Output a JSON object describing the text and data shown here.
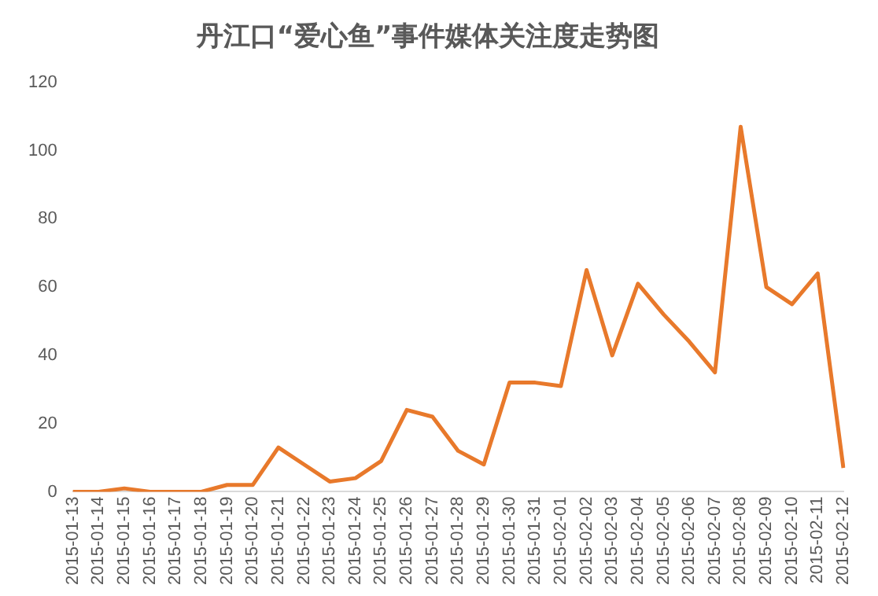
{
  "chart_data": {
    "type": "line",
    "title": "丹江口“爱心鱼”事件媒体关注度走势图",
    "categories": [
      "2015-01-13",
      "2015-01-14",
      "2015-01-15",
      "2015-01-16",
      "2015-01-17",
      "2015-01-18",
      "2015-01-19",
      "2015-01-20",
      "2015-01-21",
      "2015-01-22",
      "2015-01-23",
      "2015-01-24",
      "2015-01-25",
      "2015-01-26",
      "2015-01-27",
      "2015-01-28",
      "2015-01-29",
      "2015-01-30",
      "2015-01-31",
      "2015-02-01",
      "2015-02-02",
      "2015-02-03",
      "2015-02-04",
      "2015-02-05",
      "2015-02-06",
      "2015-02-07",
      "2015-02-08",
      "2015-02-09",
      "2015-02-10",
      "2015-02-11",
      "2015-02-12"
    ],
    "series": [
      {
        "color": "#e8792b",
        "values": [
          0,
          0,
          1,
          0,
          0,
          0,
          2,
          2,
          13,
          8,
          3,
          4,
          9,
          24,
          22,
          12,
          8,
          32,
          32,
          31,
          65,
          40,
          61,
          52,
          44,
          35,
          107,
          60,
          55,
          64,
          7
        ]
      }
    ],
    "ylim": [
      0,
      120
    ],
    "yticks": [
      0,
      20,
      40,
      60,
      80,
      100,
      120
    ],
    "grid": false,
    "legend": false,
    "marker": "none",
    "line_style": "solid"
  }
}
